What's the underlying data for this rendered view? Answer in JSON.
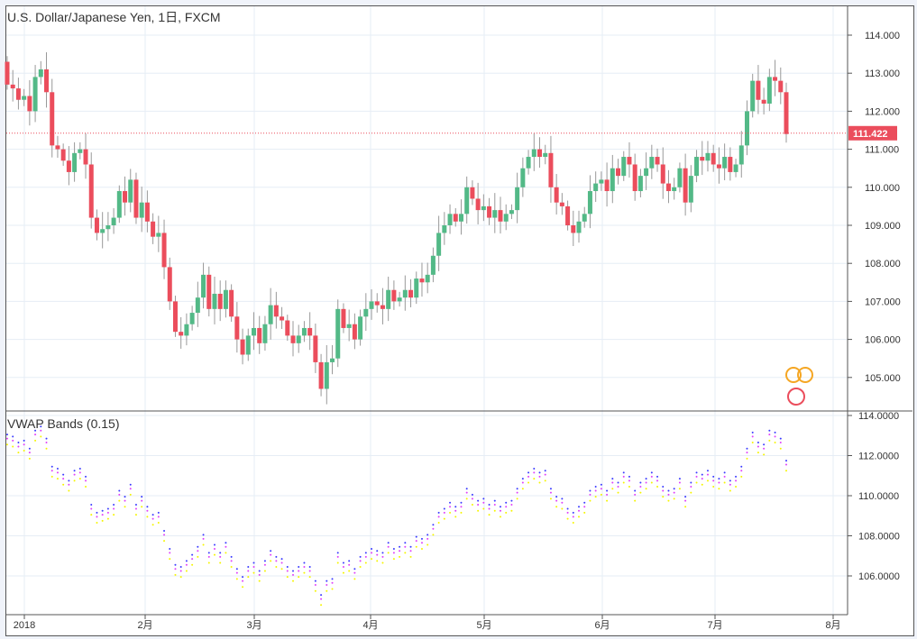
{
  "header": {
    "title": "U.S. Dollar/Japanese Yen, 1日, FXCM"
  },
  "indicator": {
    "title": "VWAP Bands (0.15)"
  },
  "last_price_label": "111.422",
  "colors": {
    "up": "#53b987",
    "down": "#eb4d5c",
    "band_upper": "#3b3bff",
    "band_mid": "#e040fb",
    "band_lower": "#f5f500",
    "price_line": "#eb4d5c"
  },
  "chart_data": {
    "type": "candlestick",
    "title": "U.S. Dollar/Japanese Yen, 1日, FXCM",
    "price_axis": {
      "ticks": [
        "114.000",
        "113.000",
        "112.000",
        "111.000",
        "110.000",
        "109.000",
        "108.000",
        "107.000",
        "106.000",
        "105.000"
      ],
      "range": [
        104.25,
        114.75
      ]
    },
    "indicator_axis": {
      "ticks": [
        "114.0000",
        "112.0000",
        "110.0000",
        "108.0000",
        "106.0000"
      ],
      "range": [
        104.2,
        114.2
      ]
    },
    "time_axis": {
      "ticks": [
        "2018",
        "2月",
        "3月",
        "4月",
        "5月",
        "6月",
        "7月",
        "8月"
      ]
    },
    "last_price": 111.422,
    "first_open": 113.3,
    "closes": [
      112.7,
      112.6,
      112.3,
      112.4,
      112.0,
      112.9,
      113.1,
      112.5,
      111.1,
      111.0,
      110.7,
      110.4,
      110.9,
      111.0,
      110.6,
      109.2,
      108.8,
      108.9,
      109.0,
      109.2,
      109.9,
      109.6,
      110.2,
      109.2,
      109.6,
      109.1,
      108.7,
      108.8,
      107.9,
      107.0,
      106.2,
      106.1,
      106.4,
      106.7,
      107.1,
      107.7,
      106.8,
      107.2,
      106.8,
      107.3,
      106.6,
      106.0,
      105.6,
      106.1,
      106.3,
      105.9,
      106.4,
      106.9,
      106.6,
      106.5,
      106.1,
      105.9,
      106.1,
      106.3,
      106.1,
      105.4,
      104.7,
      105.4,
      105.5,
      106.8,
      106.3,
      106.4,
      106.0,
      106.6,
      106.8,
      107.0,
      106.9,
      106.8,
      107.3,
      107.0,
      107.1,
      107.3,
      107.1,
      107.6,
      107.5,
      107.7,
      108.2,
      108.8,
      109.0,
      109.3,
      109.1,
      109.3,
      110.0,
      109.7,
      109.4,
      109.5,
      109.2,
      109.4,
      109.1,
      109.3,
      109.4,
      110.0,
      110.5,
      110.8,
      111.0,
      110.8,
      110.9,
      110.0,
      109.6,
      109.5,
      109.0,
      108.8,
      109.1,
      109.3,
      109.9,
      110.1,
      110.2,
      109.9,
      110.5,
      110.3,
      110.8,
      110.6,
      109.9,
      110.3,
      110.5,
      110.8,
      110.6,
      110.1,
      109.9,
      110.0,
      110.5,
      109.6,
      110.3,
      110.8,
      110.7,
      110.9,
      110.6,
      110.5,
      110.8,
      110.4,
      110.6,
      111.1,
      112.0,
      112.8,
      112.3,
      112.2,
      112.9,
      112.8,
      112.5,
      111.4
    ]
  }
}
